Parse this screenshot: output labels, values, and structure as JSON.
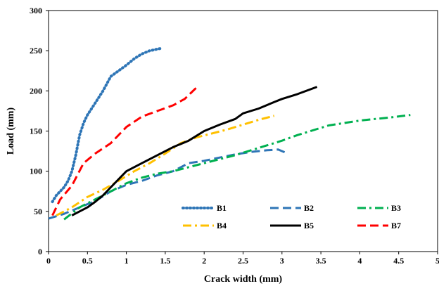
{
  "chart_data": {
    "type": "line",
    "title": "",
    "xlabel": "Crack width (mm)",
    "ylabel": "Load (mm)",
    "xlim": [
      0,
      5
    ],
    "ylim": [
      0,
      300
    ],
    "xticks": [
      0,
      0.5,
      1,
      1.5,
      2,
      2.5,
      3,
      3.5,
      4,
      4.5,
      5
    ],
    "xtick_labels": [
      "0",
      "0.5",
      "1",
      "1.5",
      "2",
      "2.5",
      "3",
      "3.5",
      "4",
      "4.5",
      "5"
    ],
    "yticks": [
      0,
      50,
      100,
      150,
      200,
      250,
      300
    ],
    "ytick_labels": [
      "0",
      "50",
      "100",
      "150",
      "200",
      "250",
      "300"
    ],
    "grid": false,
    "legend_position": "inside-bottom-center",
    "series": [
      {
        "name": "B1",
        "color": "#2E75B6",
        "dash": "dotted",
        "x": [
          0.05,
          0.1,
          0.2,
          0.25,
          0.3,
          0.35,
          0.4,
          0.45,
          0.5,
          0.6,
          0.7,
          0.8,
          0.9,
          1.0,
          1.1,
          1.2,
          1.3,
          1.45
        ],
        "y": [
          62,
          70,
          80,
          88,
          100,
          120,
          145,
          160,
          170,
          185,
          200,
          218,
          225,
          232,
          240,
          246,
          250,
          253
        ]
      },
      {
        "name": "B2",
        "color": "#2E75B6",
        "dash": "long-dash",
        "x": [
          0,
          0.2,
          0.4,
          0.6,
          0.8,
          1.0,
          1.2,
          1.4,
          1.6,
          1.8,
          2.0,
          2.2,
          2.4,
          2.6,
          2.8,
          2.95,
          3.05
        ],
        "y": [
          41,
          47,
          55,
          63,
          75,
          83,
          88,
          95,
          100,
          110,
          113,
          117,
          121,
          124,
          126,
          127,
          123
        ]
      },
      {
        "name": "B3",
        "color": "#00B050",
        "dash": "dash-dot",
        "x": [
          0.2,
          0.4,
          0.6,
          0.8,
          1.0,
          1.2,
          1.4,
          1.6,
          1.8,
          2.0,
          2.4,
          2.8,
          3.0,
          3.2,
          3.6,
          4.0,
          4.2,
          4.4,
          4.65
        ],
        "y": [
          40,
          55,
          65,
          75,
          85,
          92,
          97,
          100,
          105,
          110,
          120,
          132,
          138,
          145,
          157,
          163,
          165,
          167,
          170
        ]
      },
      {
        "name": "B4",
        "color": "#FFC000",
        "dash": "dash-dot",
        "x": [
          0.1,
          0.3,
          0.5,
          0.7,
          0.9,
          1.1,
          1.3,
          1.5,
          1.7,
          1.9,
          2.1,
          2.3,
          2.5,
          2.7,
          2.9
        ],
        "y": [
          45,
          55,
          68,
          77,
          88,
          100,
          110,
          122,
          135,
          142,
          147,
          152,
          158,
          164,
          169
        ]
      },
      {
        "name": "B5",
        "color": "#000000",
        "dash": "solid",
        "x": [
          0.3,
          0.5,
          0.6,
          0.7,
          0.8,
          1.0,
          1.2,
          1.4,
          1.6,
          1.8,
          2.0,
          2.2,
          2.4,
          2.5,
          2.7,
          2.9,
          3.0,
          3.2,
          3.45
        ],
        "y": [
          45,
          55,
          62,
          70,
          80,
          100,
          110,
          120,
          130,
          138,
          150,
          158,
          165,
          172,
          178,
          186,
          190,
          196,
          205
        ]
      },
      {
        "name": "B7",
        "color": "#FF0000",
        "dash": "long-dash",
        "x": [
          0.05,
          0.15,
          0.3,
          0.45,
          0.6,
          0.8,
          1.0,
          1.2,
          1.4,
          1.6,
          1.75,
          1.9
        ],
        "y": [
          45,
          65,
          82,
          110,
          122,
          135,
          155,
          168,
          175,
          182,
          190,
          204
        ]
      }
    ]
  }
}
